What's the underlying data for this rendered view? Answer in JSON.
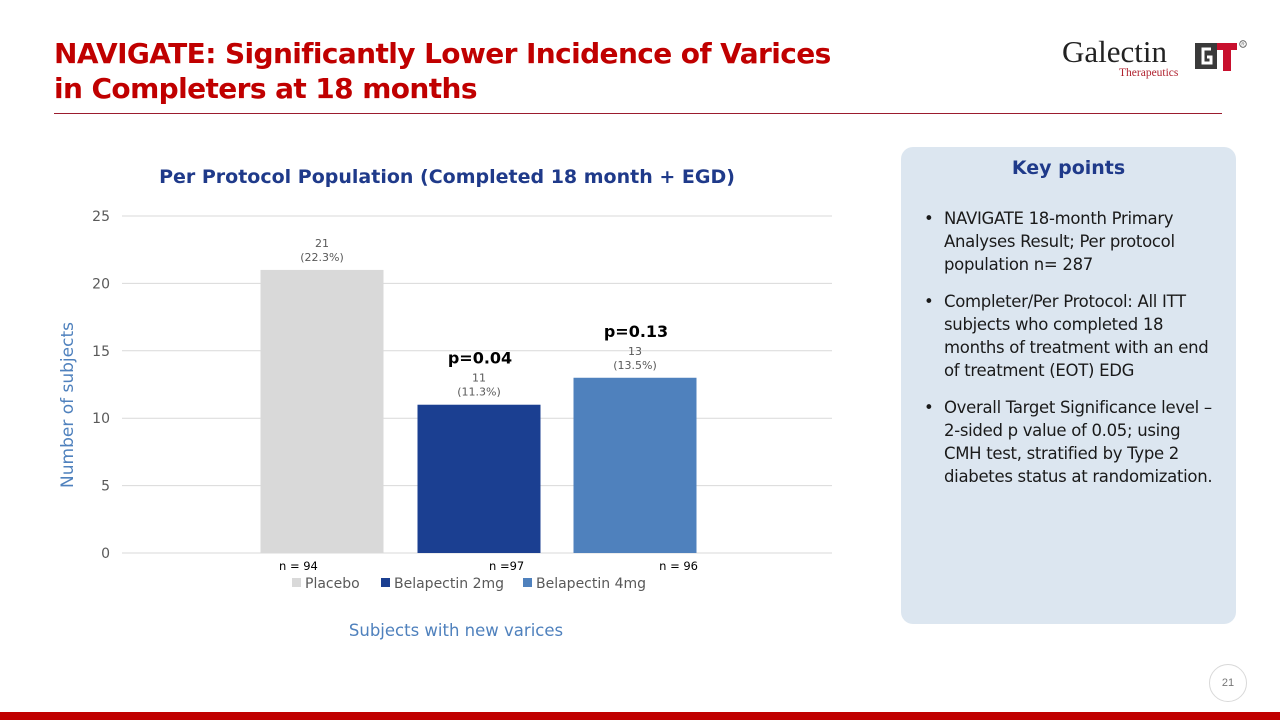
{
  "slide": {
    "title_line1": "NAVIGATE: Significantly Lower Incidence of Varices",
    "title_line2": "in Completers at 18 months",
    "logo": {
      "name": "Galectin",
      "sub": "Therapeutics",
      "mark": "GT",
      "registered": "®"
    },
    "page_number": "21"
  },
  "key_points": {
    "title": "Key points",
    "items": [
      "NAVIGATE 18-month Primary Analyses Result; Per protocol population n= 287",
      "Completer/Per Protocol: All ITT subjects who completed 18 months of treatment with an end of treatment (EOT) EDG",
      "Overall Target Significance level – 2-sided p value of 0.05; using CMH test, stratified by Type 2 diabetes status at randomization."
    ]
  },
  "chart_data": {
    "type": "bar",
    "title": "Per Protocol Population (Completed 18 month + EGD)",
    "ylabel": "Number of subjects",
    "xlabel": "Subjects with new varices",
    "ylim": [
      0,
      25
    ],
    "yticks": [
      0,
      5,
      10,
      15,
      20,
      25
    ],
    "grid": true,
    "legend_position": "bottom",
    "series": [
      {
        "name": "Placebo",
        "value": 21,
        "label_count": "21",
        "label_pct": "(22.3%)",
        "n_label": "n = 94",
        "p_value": "",
        "color": "#D9D9D9"
      },
      {
        "name": "Belapectin 2mg",
        "value": 11,
        "label_count": "11",
        "label_pct": "(11.3%)",
        "n_label": "n =97",
        "p_value": "p=0.04",
        "color": "#1B3F91"
      },
      {
        "name": "Belapectin 4mg",
        "value": 13,
        "label_count": "13",
        "label_pct": "(13.5%)",
        "n_label": "n = 96",
        "p_value": "p=0.13",
        "color": "#4F81BD"
      }
    ]
  },
  "colors": {
    "title": "#C00000",
    "accent_blue": "#1F3A8A",
    "axis_label": "#4F81BD"
  }
}
